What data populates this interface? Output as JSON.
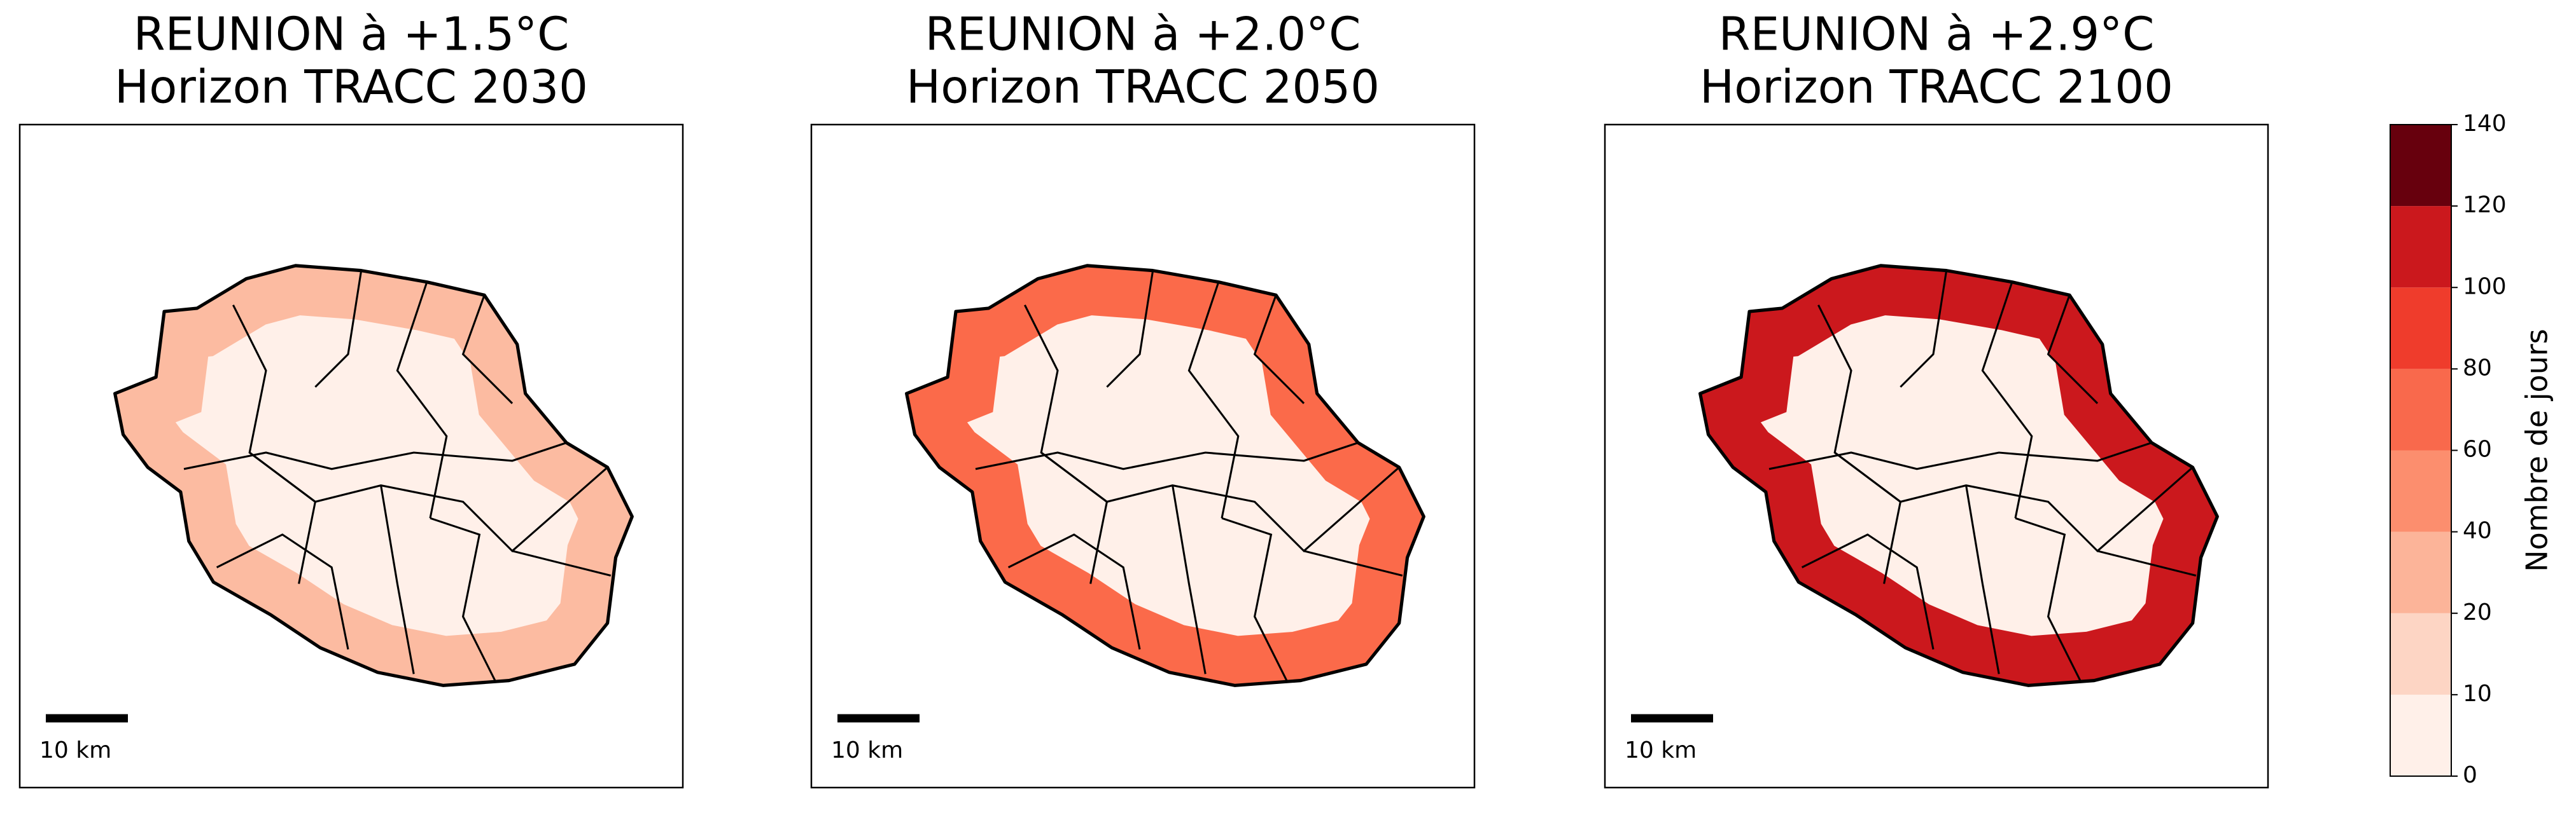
{
  "chart_data": {
    "type": "choropleth-panels",
    "panels": [
      {
        "title": [
          "REUNION à +1.5°C",
          "Horizon TRACC 2030"
        ],
        "scale_label": "10 km"
      },
      {
        "title": [
          "REUNION à +2.0°C",
          "Horizon TRACC 2050"
        ],
        "scale_label": "10 km"
      },
      {
        "title": [
          "REUNION à +2.9°C",
          "Horizon TRACC 2100"
        ],
        "scale_label": "10 km"
      }
    ],
    "colorbar": {
      "label": "Nombre de jours",
      "bounds": [
        0,
        10,
        20,
        40,
        60,
        80,
        100,
        120,
        140
      ],
      "colors": [
        "#fff0e9",
        "#fdd5c4",
        "#fcb499",
        "#fc8e6e",
        "#f9694c",
        "#ef3c2c",
        "#cb181d",
        "#67000d"
      ]
    }
  }
}
